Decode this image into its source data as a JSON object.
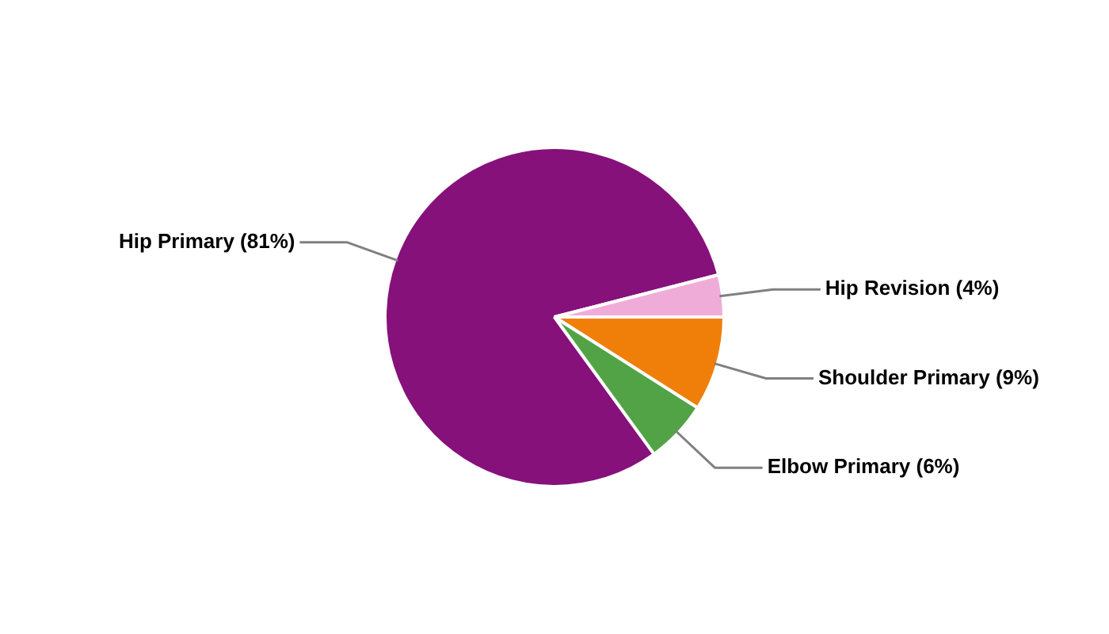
{
  "chart_data": {
    "type": "pie",
    "categories": [
      "Hip Primary (81%)",
      "Hip Revision (4%)",
      "Shoulder Primary (9%)",
      "Elbow Primary (6%)"
    ],
    "values": [
      81,
      4,
      9,
      6
    ],
    "colors": [
      "#86117b",
      "#f0acd8",
      "#f07f0a",
      "#52a346"
    ],
    "legend": false
  }
}
